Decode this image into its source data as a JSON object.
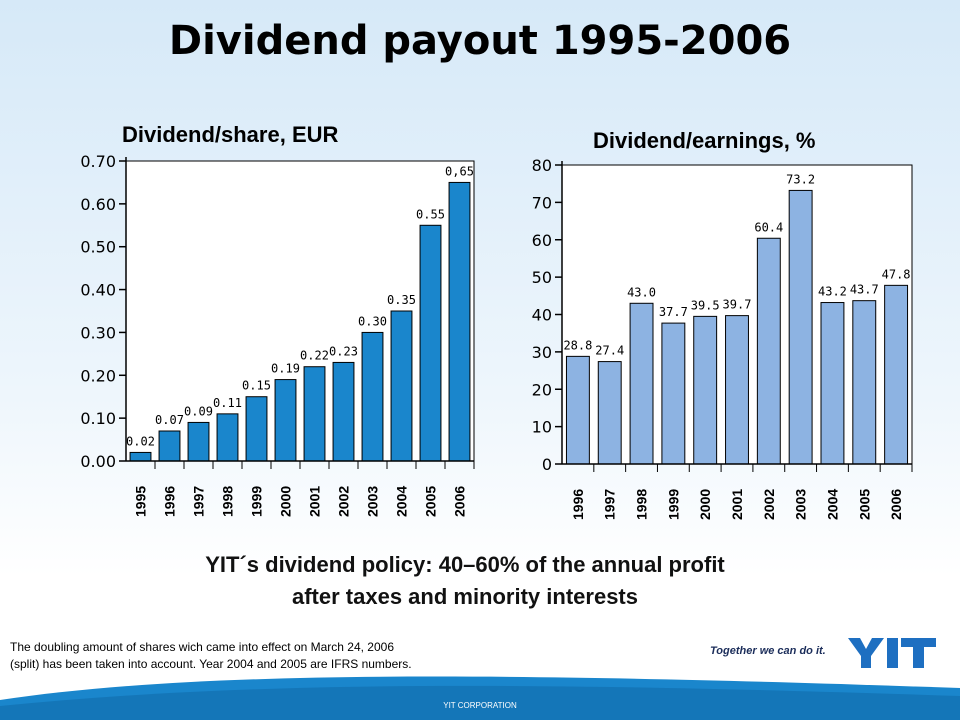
{
  "slide": {
    "title": "Dividend payout 1995-2006",
    "policy_line1": "YIT´s dividend policy: 40–60% of the annual profit",
    "policy_line2": "after taxes and minority interests",
    "footnote": "The doubling amount of shares wich came into effect on March 24, 2006 (split) has been taken into account. Year 2004 and 2005 are IFRS numbers.",
    "slogan": "Together we can do it.",
    "logo_text": "YIT",
    "corporation": "YIT CORPORATION"
  },
  "colors": {
    "left_bar": "#1a86cc",
    "right_bar": "#8db3e2",
    "logo": "#1e6fc1",
    "wave": "#1a86cc"
  },
  "chart_data": [
    {
      "type": "bar",
      "title": "Dividend/share, EUR",
      "categories": [
        "1995",
        "1996",
        "1997",
        "1998",
        "1999",
        "2000",
        "2001",
        "2002",
        "2003",
        "2004",
        "2005",
        "2006"
      ],
      "values": [
        0.02,
        0.07,
        0.09,
        0.11,
        0.15,
        0.19,
        0.22,
        0.23,
        0.3,
        0.35,
        0.55,
        0.65
      ],
      "data_labels": [
        "0.02",
        "0.07",
        "0.09",
        "0.11",
        "0.15",
        "0.19",
        "0.22",
        "0.23",
        "0.30",
        "0.35",
        "0.55",
        "0,65"
      ],
      "yticks": [
        "0.00",
        "0.10",
        "0.20",
        "0.30",
        "0.40",
        "0.50",
        "0.60",
        "0.70"
      ],
      "ylim": [
        0,
        0.7
      ],
      "grid": false,
      "legend": "none"
    },
    {
      "type": "bar",
      "title": "Dividend/earnings, %",
      "categories": [
        "1996",
        "1997",
        "1998",
        "1999",
        "2000",
        "2001",
        "2002",
        "2003",
        "2004",
        "2005",
        "2006"
      ],
      "values": [
        28.8,
        27.4,
        43.0,
        37.7,
        39.5,
        39.7,
        60.4,
        73.2,
        43.2,
        43.7,
        47.8
      ],
      "data_labels": [
        "28.8",
        "27.4",
        "43.0",
        "37.7",
        "39.5",
        "39.7",
        "60.4",
        "73.2",
        "43.2",
        "43.7",
        "47.8"
      ],
      "yticks": [
        "0",
        "10",
        "20",
        "30",
        "40",
        "50",
        "60",
        "70",
        "80"
      ],
      "ylim": [
        0,
        80
      ],
      "grid": false,
      "legend": "none"
    }
  ]
}
